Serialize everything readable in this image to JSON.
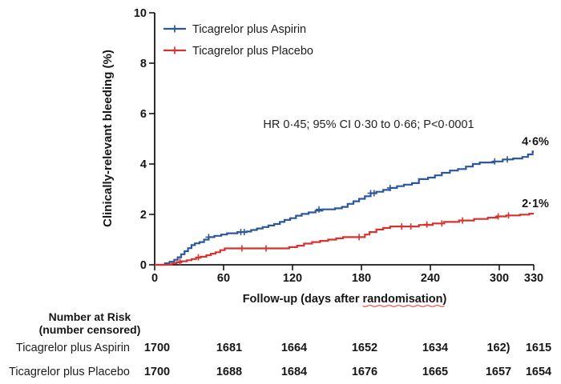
{
  "colors": {
    "aspirin_blue": "#2b579c",
    "placebo_red": "#d5332f",
    "axis_black": "#161616",
    "squiggle_red": "#ef4136",
    "background": "#ffffff"
  },
  "chart": {
    "xlabel_prefix": "Follow-up (days after ",
    "xlabel_word": "randomisation",
    "xlabel_suffix": ")"
  },
  "chart_data": {
    "type": "line",
    "subtype": "kaplan-meier-cumulative-incidence-step",
    "title": "",
    "ylabel": "Clinically-relevant bleeding (%)",
    "xlabel": "Follow-up (days after randomisation)",
    "annotation": "HR 0·45; 95% CI 0·30 to 0·66; P<0·0001",
    "xlim": [
      0,
      330
    ],
    "ylim": [
      0,
      10
    ],
    "xticks": [
      0,
      60,
      120,
      180,
      240,
      300,
      330
    ],
    "yticks": [
      0,
      2,
      4,
      6,
      8,
      10
    ],
    "grid": false,
    "legend_position": "top-left-inside",
    "series": [
      {
        "name": "Ticagrelor plus Aspirin",
        "color": "#2b579c",
        "end_label": "4·6%",
        "points": [
          [
            0,
            0
          ],
          [
            9,
            0.06
          ],
          [
            13,
            0.12
          ],
          [
            17,
            0.2
          ],
          [
            20,
            0.3
          ],
          [
            23,
            0.42
          ],
          [
            26,
            0.54
          ],
          [
            29,
            0.66
          ],
          [
            32,
            0.78
          ],
          [
            35,
            0.85
          ],
          [
            39,
            0.9
          ],
          [
            43,
            1.0
          ],
          [
            47,
            1.1
          ],
          [
            52,
            1.15
          ],
          [
            58,
            1.2
          ],
          [
            63,
            1.25
          ],
          [
            72,
            1.3
          ],
          [
            80,
            1.32
          ],
          [
            84,
            1.38
          ],
          [
            89,
            1.44
          ],
          [
            94,
            1.5
          ],
          [
            99,
            1.56
          ],
          [
            104,
            1.62
          ],
          [
            109,
            1.7
          ],
          [
            113,
            1.78
          ],
          [
            118,
            1.85
          ],
          [
            123,
            1.95
          ],
          [
            128,
            2.02
          ],
          [
            134,
            2.08
          ],
          [
            140,
            2.15
          ],
          [
            146,
            2.2
          ],
          [
            157,
            2.24
          ],
          [
            163,
            2.3
          ],
          [
            168,
            2.42
          ],
          [
            173,
            2.52
          ],
          [
            178,
            2.62
          ],
          [
            183,
            2.72
          ],
          [
            188,
            2.84
          ],
          [
            193,
            2.9
          ],
          [
            199,
            2.97
          ],
          [
            205,
            3.05
          ],
          [
            211,
            3.12
          ],
          [
            217,
            3.18
          ],
          [
            224,
            3.24
          ],
          [
            230,
            3.4
          ],
          [
            238,
            3.46
          ],
          [
            244,
            3.55
          ],
          [
            250,
            3.65
          ],
          [
            257,
            3.74
          ],
          [
            264,
            3.8
          ],
          [
            271,
            3.9
          ],
          [
            277,
            4.0
          ],
          [
            283,
            4.06
          ],
          [
            295,
            4.1
          ],
          [
            303,
            4.18
          ],
          [
            312,
            4.22
          ],
          [
            320,
            4.28
          ],
          [
            325,
            4.38
          ],
          [
            329,
            4.5
          ]
        ],
        "censor_marks": [
          [
            47,
            1.1
          ],
          [
            75,
            1.3
          ],
          [
            78,
            1.3
          ],
          [
            143,
            2.2
          ],
          [
            188,
            2.84
          ],
          [
            191,
            2.84
          ],
          [
            205,
            3.05
          ],
          [
            296,
            4.1
          ],
          [
            307,
            4.18
          ]
        ]
      },
      {
        "name": "Ticagrelor plus Placebo",
        "color": "#d5332f",
        "end_label": "2·1%",
        "points": [
          [
            0,
            0
          ],
          [
            15,
            0.05
          ],
          [
            19,
            0.1
          ],
          [
            23,
            0.14
          ],
          [
            28,
            0.18
          ],
          [
            32,
            0.23
          ],
          [
            36,
            0.28
          ],
          [
            40,
            0.32
          ],
          [
            45,
            0.38
          ],
          [
            49,
            0.44
          ],
          [
            53,
            0.5
          ],
          [
            57,
            0.58
          ],
          [
            61,
            0.65
          ],
          [
            117,
            0.7
          ],
          [
            124,
            0.76
          ],
          [
            130,
            0.84
          ],
          [
            137,
            0.9
          ],
          [
            144,
            0.95
          ],
          [
            151,
            1.0
          ],
          [
            158,
            1.05
          ],
          [
            164,
            1.1
          ],
          [
            183,
            1.2
          ],
          [
            187,
            1.3
          ],
          [
            193,
            1.4
          ],
          [
            199,
            1.46
          ],
          [
            205,
            1.52
          ],
          [
            230,
            1.58
          ],
          [
            242,
            1.64
          ],
          [
            252,
            1.7
          ],
          [
            265,
            1.76
          ],
          [
            278,
            1.82
          ],
          [
            290,
            1.87
          ],
          [
            298,
            1.92
          ],
          [
            306,
            1.96
          ],
          [
            318,
            1.99
          ],
          [
            326,
            2.03
          ]
        ],
        "censor_marks": [
          [
            22,
            0.12
          ],
          [
            38,
            0.3
          ],
          [
            76,
            0.65
          ],
          [
            97,
            0.65
          ],
          [
            178,
            1.1
          ],
          [
            215,
            1.52
          ],
          [
            223,
            1.52
          ],
          [
            237,
            1.6
          ],
          [
            250,
            1.64
          ],
          [
            268,
            1.76
          ],
          [
            299,
            1.92
          ],
          [
            308,
            1.96
          ]
        ]
      }
    ]
  },
  "risk_table": {
    "header_line1": "Number at Risk",
    "header_line2": "(number censored)",
    "columns_days": [
      0,
      60,
      120,
      180,
      240,
      300,
      330
    ],
    "rows": [
      {
        "label": "Ticagrelor plus Aspirin",
        "values": [
          "1700",
          "1681",
          "1664",
          "1652",
          "1634",
          "162)",
          "1615"
        ]
      },
      {
        "label": "Ticagrelor plus Placebo",
        "values": [
          "1700",
          "1688",
          "1684",
          "1676",
          "1665",
          "1657",
          "1654"
        ]
      }
    ]
  }
}
